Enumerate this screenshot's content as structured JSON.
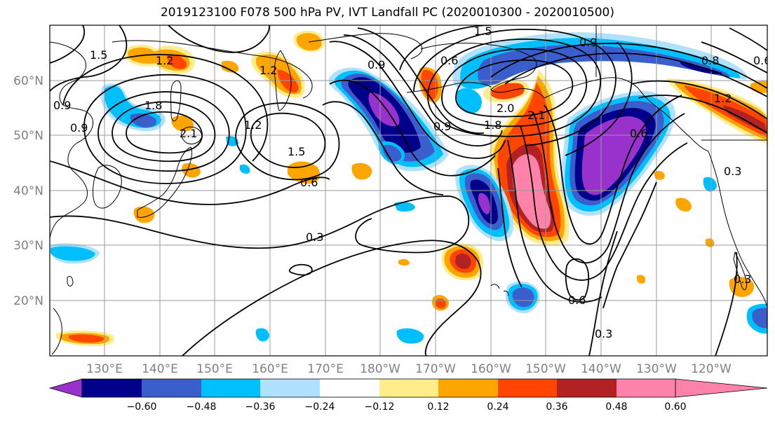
{
  "title": "2019123100 F078 500 hPa PV, IVT Landfall PC (2020010300 - 2020010500)",
  "lat_ticks": [
    "60°N",
    "50°N",
    "40°N",
    "30°N",
    "20°N"
  ],
  "lon_ticks": [
    "130°E",
    "140°E",
    "150°E",
    "160°E",
    "170°E",
    "180°W",
    "170°W",
    "160°W",
    "150°W",
    "140°W",
    "130°W",
    "120°W"
  ],
  "colorbar": {
    "colors": [
      "#9932cc",
      "#00008b",
      "#3a5fcd",
      "#00bfff",
      "#b0e2ff",
      "#ffffff",
      "#ffec8b",
      "#ffa500",
      "#ff4500",
      "#b22222",
      "#ff82ab"
    ],
    "tick_labels": [
      "−0.60",
      "−0.48",
      "−0.36",
      "−0.24",
      "−0.12",
      "0.12",
      "0.24",
      "0.36",
      "0.48",
      "0.60"
    ]
  },
  "contour_labels": [
    "1.5",
    "1.2",
    "0.9",
    "1.8",
    "2.1",
    "1.2",
    "1.5",
    "0.6",
    "0.3",
    "0.9",
    "0.6",
    "2.1",
    "2.0",
    "1.8",
    "1.5",
    "0.9",
    "0.6",
    "1.2",
    "0.6",
    "0.3",
    "0.3",
    "0.6",
    "0.3",
    "0.9",
    "1.2",
    "0.9",
    "0.8"
  ]
}
